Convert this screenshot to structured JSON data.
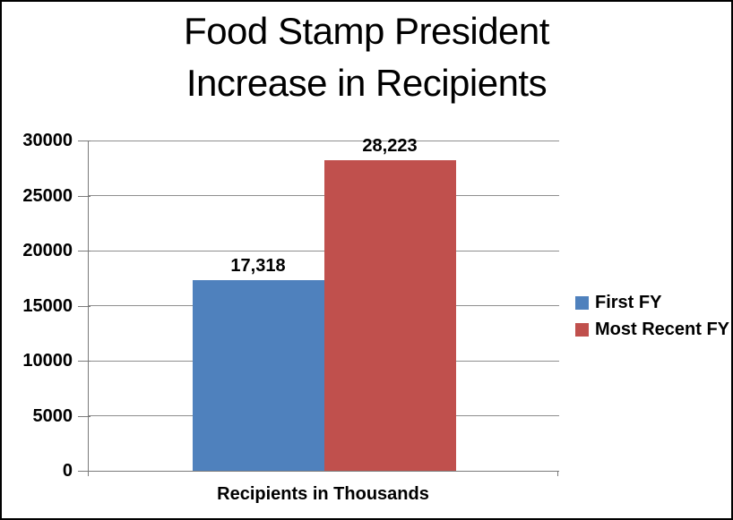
{
  "window": {
    "background": "#ffffff",
    "border_color": "#000000"
  },
  "chart_data": {
    "type": "bar",
    "title_lines": [
      "Food Stamp President",
      "Increase in Recipients"
    ],
    "categories": [
      "Recipients in Thousands"
    ],
    "series": [
      {
        "name": "First FY",
        "values": [
          17318
        ],
        "value_label": "17,318",
        "color": "#4F81BD"
      },
      {
        "name": "Most Recent FY",
        "values": [
          28223
        ],
        "value_label": "28,223",
        "color": "#C0504D"
      }
    ],
    "xlabel": "Recipients in Thousands",
    "ylabel": "",
    "ylim": [
      0,
      30000
    ],
    "ytick_interval": 5000,
    "yticks": [
      0,
      5000,
      10000,
      15000,
      20000,
      25000,
      30000
    ],
    "grid": true,
    "legend_position": "right",
    "colors": {
      "grid": "#8e8e8e",
      "axis": "#7a7a7a",
      "text": "#000000"
    }
  }
}
